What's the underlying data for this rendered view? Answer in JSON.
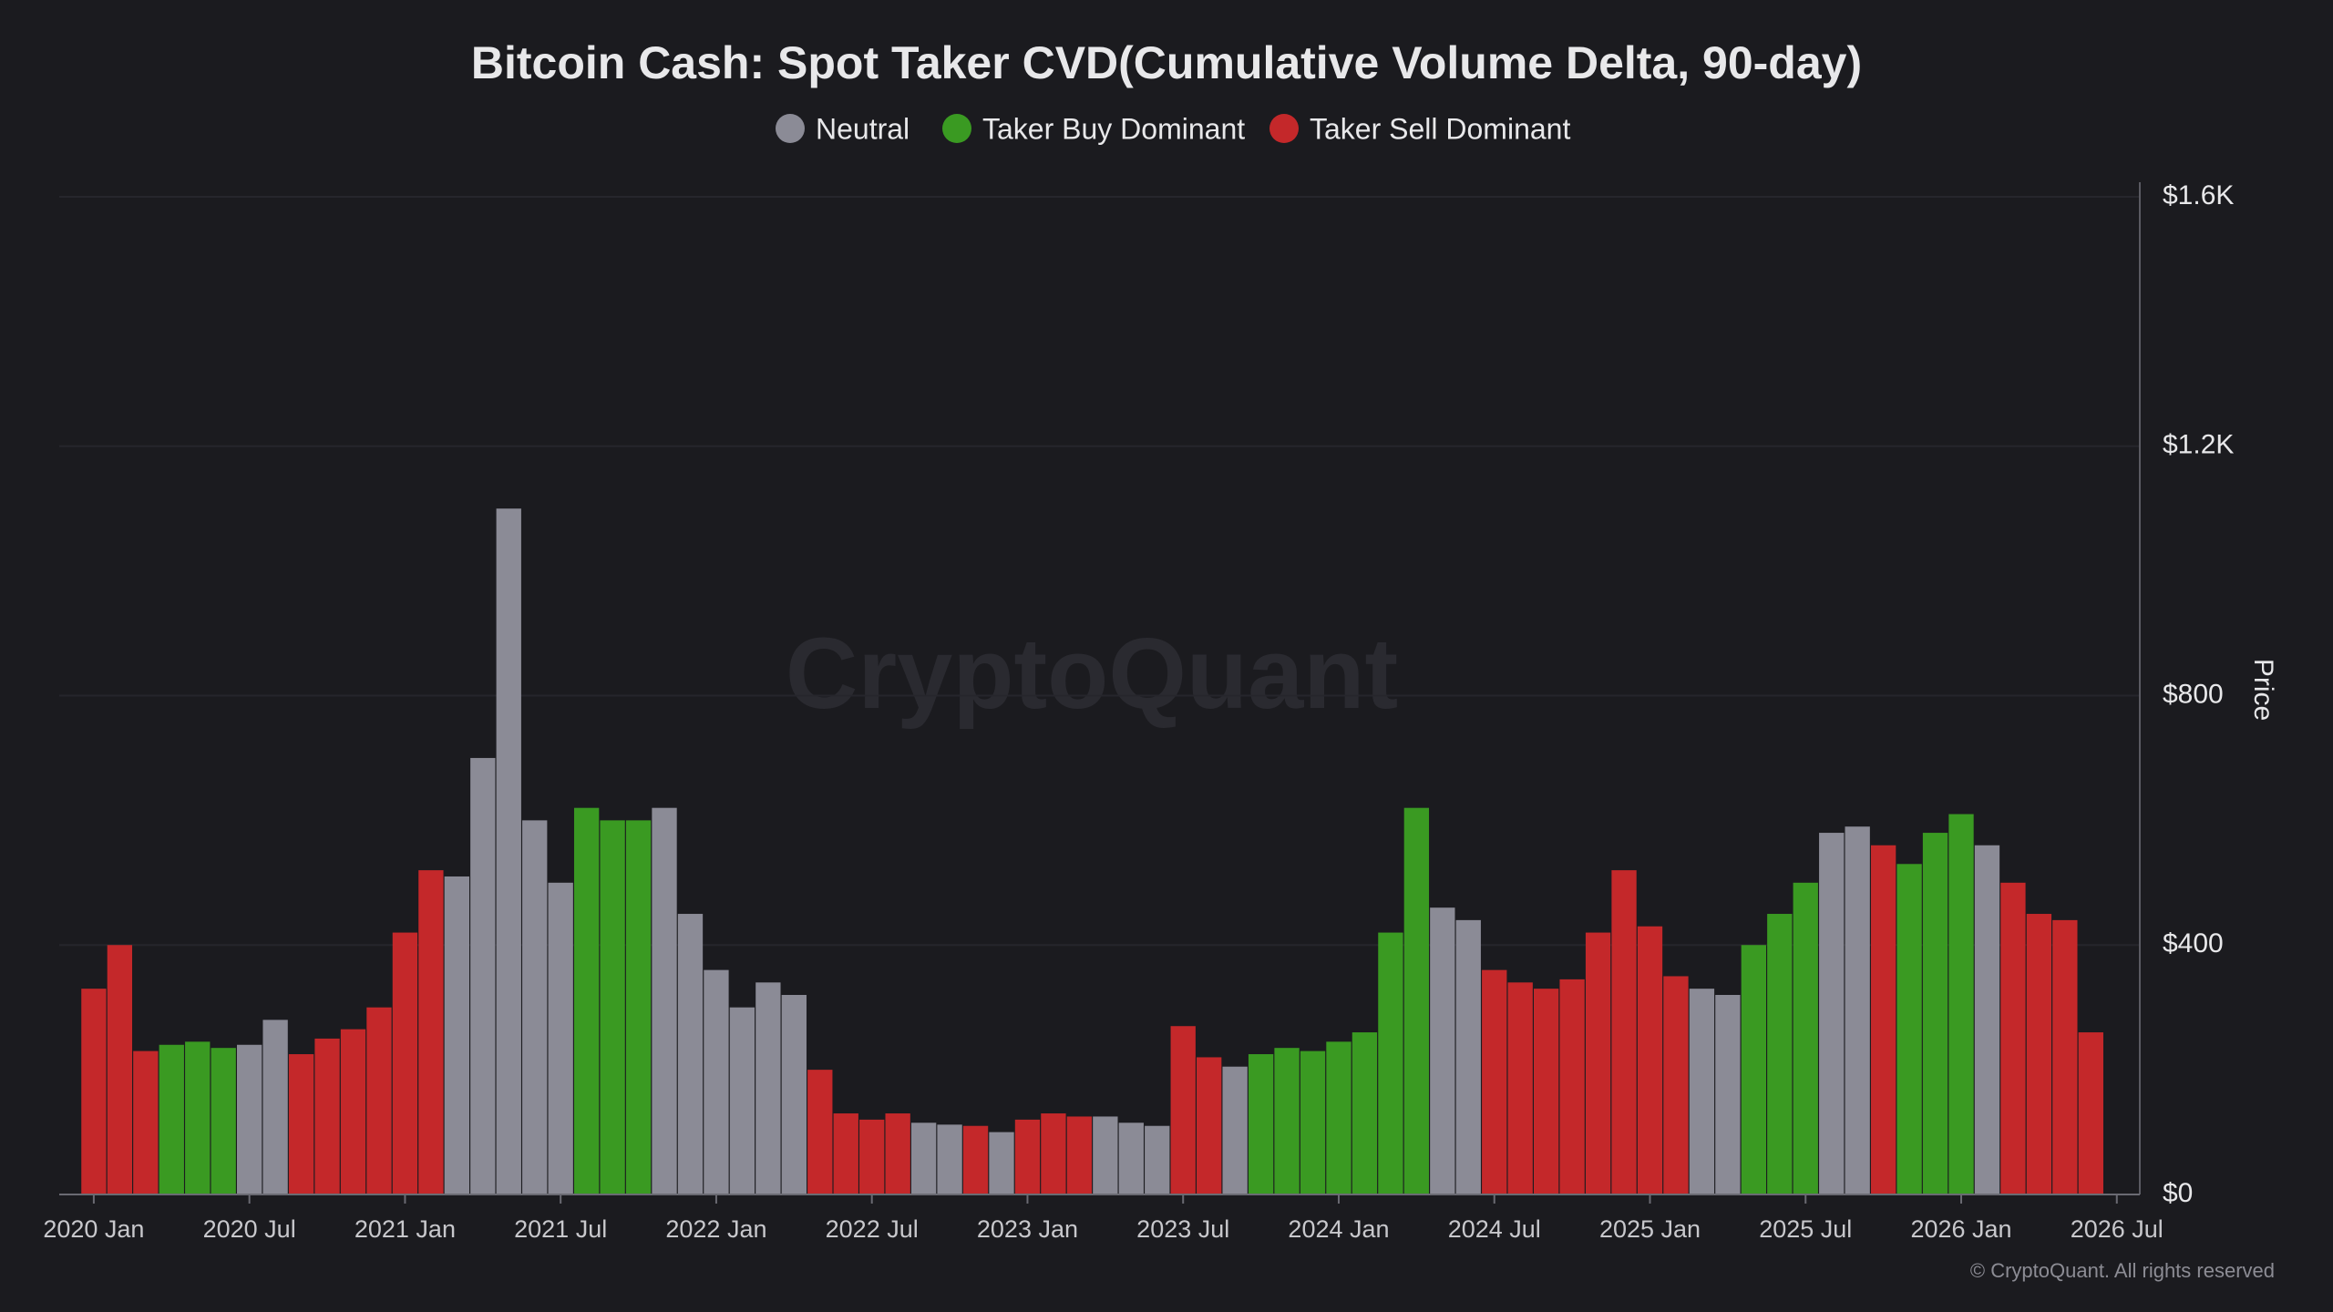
{
  "chart_data": {
    "type": "bar",
    "title": "Bitcoin Cash: Spot Taker CVD(Cumulative Volume Delta, 90-day)",
    "watermark": "CryptoQuant",
    "copyright": "© CryptoQuant. All rights reserved",
    "y_label": "Price",
    "x": [
      "2020-01",
      "2020-02",
      "2020-03",
      "2020-04",
      "2020-05",
      "2020-06",
      "2020-07",
      "2020-08",
      "2020-09",
      "2020-10",
      "2020-11",
      "2020-12",
      "2021-01",
      "2021-02",
      "2021-03",
      "2021-04",
      "2021-05",
      "2021-06",
      "2021-07",
      "2021-08",
      "2021-09",
      "2021-10",
      "2021-11",
      "2021-12",
      "2022-01",
      "2022-02",
      "2022-03",
      "2022-04",
      "2022-05",
      "2022-06",
      "2022-07",
      "2022-08",
      "2022-09",
      "2022-10",
      "2022-11",
      "2022-12",
      "2023-01",
      "2023-02",
      "2023-03",
      "2023-04",
      "2023-05",
      "2023-06",
      "2023-07",
      "2023-08",
      "2023-09",
      "2023-10",
      "2023-11",
      "2023-12",
      "2024-01",
      "2024-02",
      "2024-03",
      "2024-04",
      "2024-05",
      "2024-06",
      "2024-07",
      "2024-08",
      "2024-09",
      "2024-10",
      "2024-11",
      "2024-12",
      "2025-01",
      "2025-02",
      "2025-03",
      "2025-04",
      "2025-05",
      "2025-06",
      "2025-07",
      "2025-08",
      "2025-09",
      "2025-10",
      "2025-11",
      "2025-12",
      "2026-01",
      "2026-02",
      "2026-03",
      "2026-04",
      "2026-05",
      "2026-06"
    ],
    "series": [
      {
        "name": "Neutral",
        "color": "#8b8b96",
        "values": [
          null,
          null,
          null,
          null,
          null,
          null,
          240,
          280,
          null,
          null,
          null,
          null,
          null,
          null,
          510,
          700,
          1100,
          600,
          500,
          null,
          null,
          null,
          620,
          450,
          360,
          300,
          340,
          320,
          null,
          null,
          null,
          null,
          115,
          112,
          null,
          100,
          null,
          null,
          null,
          125,
          115,
          110,
          null,
          null,
          205,
          null,
          null,
          null,
          null,
          null,
          null,
          null,
          460,
          440,
          null,
          null,
          null,
          null,
          null,
          null,
          null,
          null,
          330,
          320,
          null,
          null,
          null,
          580,
          590,
          null,
          null,
          null,
          null,
          560,
          null,
          null,
          null,
          null
        ]
      },
      {
        "name": "Taker Buy Dominant",
        "color": "#3a9a22",
        "values": [
          null,
          null,
          null,
          240,
          245,
          235,
          null,
          null,
          null,
          null,
          null,
          null,
          null,
          null,
          null,
          null,
          null,
          null,
          null,
          620,
          600,
          600,
          null,
          null,
          null,
          null,
          null,
          null,
          null,
          null,
          null,
          null,
          null,
          null,
          null,
          null,
          null,
          null,
          null,
          null,
          null,
          null,
          null,
          null,
          null,
          225,
          235,
          230,
          245,
          260,
          420,
          620,
          null,
          null,
          null,
          null,
          null,
          null,
          null,
          null,
          null,
          null,
          null,
          null,
          400,
          450,
          500,
          null,
          null,
          null,
          530,
          580,
          610,
          null,
          null,
          null,
          null,
          null
        ]
      },
      {
        "name": "Taker Sell Dominant",
        "color": "#c4282a",
        "values": [
          330,
          400,
          230,
          null,
          null,
          null,
          null,
          null,
          225,
          250,
          265,
          300,
          420,
          520,
          null,
          null,
          null,
          null,
          null,
          null,
          null,
          null,
          null,
          null,
          null,
          null,
          null,
          null,
          200,
          130,
          120,
          130,
          null,
          null,
          110,
          null,
          120,
          130,
          125,
          null,
          null,
          null,
          270,
          220,
          null,
          null,
          null,
          null,
          null,
          null,
          null,
          null,
          null,
          null,
          360,
          340,
          330,
          345,
          420,
          520,
          430,
          350,
          null,
          null,
          null,
          null,
          null,
          null,
          null,
          560,
          null,
          null,
          null,
          null,
          500,
          450,
          440,
          260
        ]
      }
    ],
    "ylim": [
      0,
      1600
    ],
    "yticks": [
      {
        "value": 0,
        "label": "$0"
      },
      {
        "value": 400,
        "label": "$400"
      },
      {
        "value": 800,
        "label": "$800"
      },
      {
        "value": 1200,
        "label": "$1.2K"
      },
      {
        "value": 1600,
        "label": "$1.6K"
      }
    ],
    "xticks": [
      {
        "value": "2020-01",
        "label": "2020 Jan"
      },
      {
        "value": "2020-07",
        "label": "2020 Jul"
      },
      {
        "value": "2021-01",
        "label": "2021 Jan"
      },
      {
        "value": "2021-07",
        "label": "2021 Jul"
      },
      {
        "value": "2022-01",
        "label": "2022 Jan"
      },
      {
        "value": "2022-07",
        "label": "2022 Jul"
      },
      {
        "value": "2023-01",
        "label": "2023 Jan"
      },
      {
        "value": "2023-07",
        "label": "2023 Jul"
      },
      {
        "value": "2024-01",
        "label": "2024 Jan"
      },
      {
        "value": "2024-07",
        "label": "2024 Jul"
      },
      {
        "value": "2025-01",
        "label": "2025 Jan"
      },
      {
        "value": "2025-07",
        "label": "2025 Jul"
      },
      {
        "value": "2026-01",
        "label": "2026 Jan"
      },
      {
        "value": "2026-07",
        "label": "2026 Jul"
      }
    ],
    "grid": true,
    "legend": "top"
  }
}
